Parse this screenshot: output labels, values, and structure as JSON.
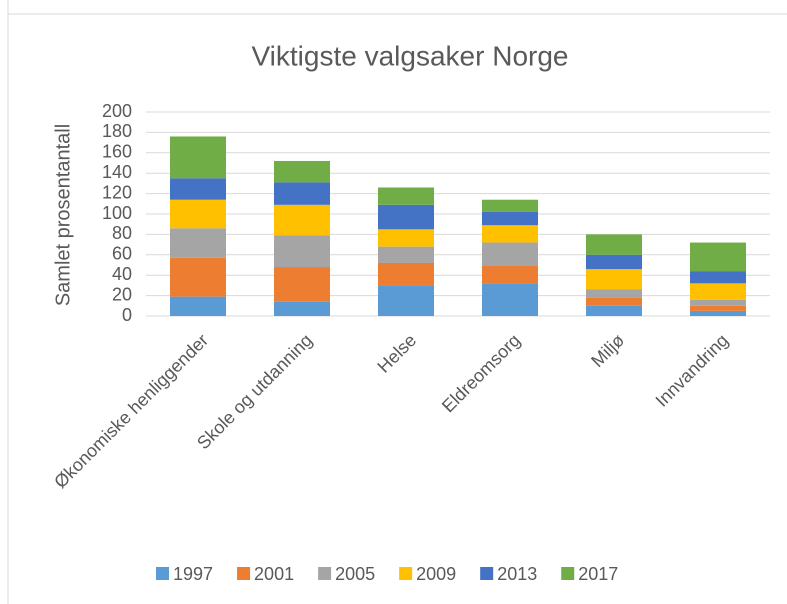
{
  "chart_data": {
    "type": "stacked_bar",
    "title": "Viktigste valgsaker Norge",
    "y_label": "Samlet prosentantall",
    "categories": [
      "Økonomiske henliggender",
      "Skole og utdanning",
      "Helse",
      "Eldreomsorg",
      "Miljø",
      "Innvandring"
    ],
    "series": [
      {
        "name": "1997",
        "color": "#5b9bd5",
        "values": [
          19,
          14,
          30,
          32,
          10,
          5
        ]
      },
      {
        "name": "2001",
        "color": "#ed7d31",
        "values": [
          38,
          34,
          22,
          17,
          8,
          5
        ]
      },
      {
        "name": "2005",
        "color": "#a5a5a5",
        "values": [
          29,
          31,
          16,
          23,
          8,
          6
        ]
      },
      {
        "name": "2009",
        "color": "#ffc000",
        "values": [
          28,
          30,
          17,
          17,
          20,
          16
        ]
      },
      {
        "name": "2013",
        "color": "#4472c4",
        "values": [
          21,
          22,
          24,
          13,
          14,
          12
        ]
      },
      {
        "name": "2017",
        "color": "#70ad47",
        "values": [
          41,
          21,
          17,
          12,
          20,
          28
        ]
      }
    ],
    "ylim": [
      0,
      200
    ],
    "yticks": [
      0,
      20,
      40,
      60,
      80,
      100,
      120,
      140,
      160,
      180,
      200
    ],
    "grid": true,
    "legend": "bottom"
  }
}
